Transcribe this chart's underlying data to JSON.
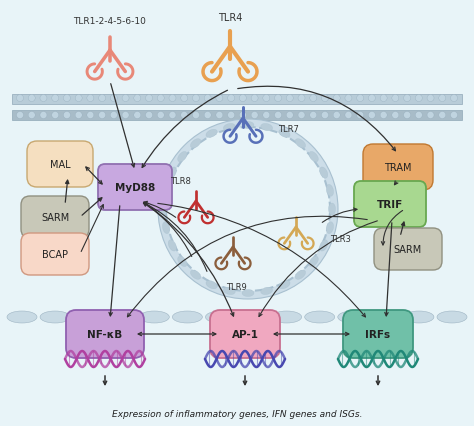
{
  "bg_color": "#e8f4f8",
  "title_text": "Expression of inflammatory genes, IFN genes and ISGs.",
  "labels": {
    "TLR1_label": "TLR1-2-4-5-6-10",
    "TLR4_label": "TLR4",
    "TLR7_label": "TLR7",
    "TLR8_label": "TLR8",
    "TLR9_label": "TLR9",
    "TLR3_label": "TLR3",
    "MyD88_label": "MyD88",
    "MAL_label": "MAL",
    "SARM_left_label": "SARM",
    "BCAP_label": "BCAP",
    "TRAM_label": "TRAM",
    "TRIF_label": "TRIF",
    "SARM_right_label": "SARM",
    "NFkB_label": "NF-κB",
    "AP1_label": "AP-1",
    "IRFs_label": "IRFs"
  },
  "colors": {
    "TLR1_receptor": "#e88878",
    "TLR4_receptor": "#e8a050",
    "TLR7_receptor": "#5870b8",
    "TLR8_receptor": "#c03030",
    "TLR9_receptor": "#8B5E3C",
    "TLR3_receptor": "#d4a855",
    "MyD88_box_fc": "#c8a8e0",
    "MyD88_box_ec": "#9070b0",
    "MAL_box_fc": "#f5dfc0",
    "MAL_box_ec": "#c8a870",
    "SARM_box_fc": "#c8c8b8",
    "SARM_box_ec": "#909080",
    "BCAP_box_fc": "#f8d8c8",
    "BCAP_box_ec": "#d09880",
    "TRAM_box_fc": "#e8a868",
    "TRAM_box_ec": "#c07830",
    "TRIF_box_fc": "#a8d890",
    "TRIF_box_ec": "#68a850",
    "NFkB_box_fc": "#c8a0d8",
    "NFkB_box_ec": "#9060b0",
    "AP1_box_fc": "#f0a8c0",
    "AP1_box_ec": "#c87090",
    "IRFs_box_fc": "#70c0a8",
    "IRFs_box_ec": "#409880",
    "membrane_top": "#b8ccd8",
    "membrane_bot": "#a8bcc8",
    "endosome_ring": "#a8c0d0",
    "dna_nfkb": "#b040a0",
    "dna_ap1": "#4848b0",
    "dna_irfs": "#208878",
    "arrow_color": "#303030",
    "nuclear_ellipse": "#b0c8d8"
  }
}
